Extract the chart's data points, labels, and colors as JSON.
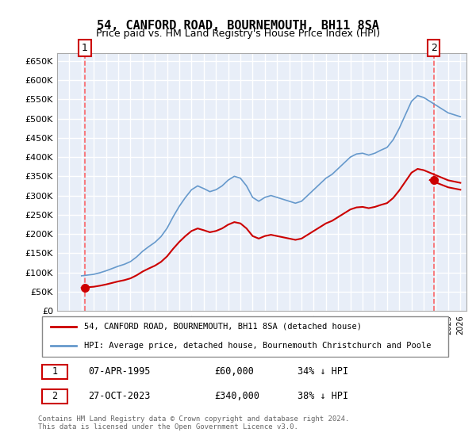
{
  "title": "54, CANFORD ROAD, BOURNEMOUTH, BH11 8SA",
  "subtitle": "Price paid vs. HM Land Registry's House Price Index (HPI)",
  "ylabel": "",
  "ylim": [
    0,
    670000
  ],
  "yticks": [
    0,
    50000,
    100000,
    150000,
    200000,
    250000,
    300000,
    350000,
    400000,
    450000,
    500000,
    550000,
    600000,
    650000
  ],
  "ytick_labels": [
    "£0",
    "£50K",
    "£100K",
    "£150K",
    "£200K",
    "£250K",
    "£300K",
    "£350K",
    "£400K",
    "£450K",
    "£500K",
    "£550K",
    "£600K",
    "£650K"
  ],
  "background_color": "#ffffff",
  "plot_bg_color": "#e8eef8",
  "hatch_color": "#c8d4e8",
  "grid_color": "#ffffff",
  "sale1_date": 1995.27,
  "sale1_price": 60000,
  "sale2_date": 2023.82,
  "sale2_price": 340000,
  "legend_label1": "54, CANFORD ROAD, BOURNEMOUTH, BH11 8SA (detached house)",
  "legend_label2": "HPI: Average price, detached house, Bournemouth Christchurch and Poole",
  "annotation1_label": "1",
  "annotation2_label": "2",
  "info1": [
    "1",
    "07-APR-1995",
    "£60,000",
    "34% ↓ HPI"
  ],
  "info2": [
    "2",
    "27-OCT-2023",
    "£340,000",
    "38% ↓ HPI"
  ],
  "footer": "Contains HM Land Registry data © Crown copyright and database right 2024.\nThis data is licensed under the Open Government Licence v3.0.",
  "red_line_color": "#cc0000",
  "blue_line_color": "#6699cc",
  "marker_color": "#cc0000",
  "dashed_line_color": "#ff4444"
}
